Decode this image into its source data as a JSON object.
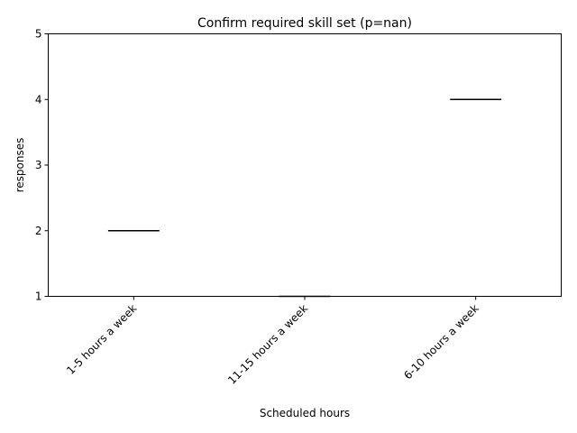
{
  "chart_data": {
    "type": "box",
    "title": "Confirm required skill set (p=nan)",
    "xlabel": "Scheduled hours",
    "ylabel": "responses",
    "ylim": [
      1,
      5
    ],
    "yticks": [
      1,
      2,
      3,
      4,
      5
    ],
    "categories": [
      "1-5 hours a week",
      "11-15 hours a week",
      "6-10 hours a week"
    ],
    "values": [
      2,
      1,
      4
    ],
    "tick_label_rotation": 45,
    "grid": false,
    "legend": "none"
  }
}
